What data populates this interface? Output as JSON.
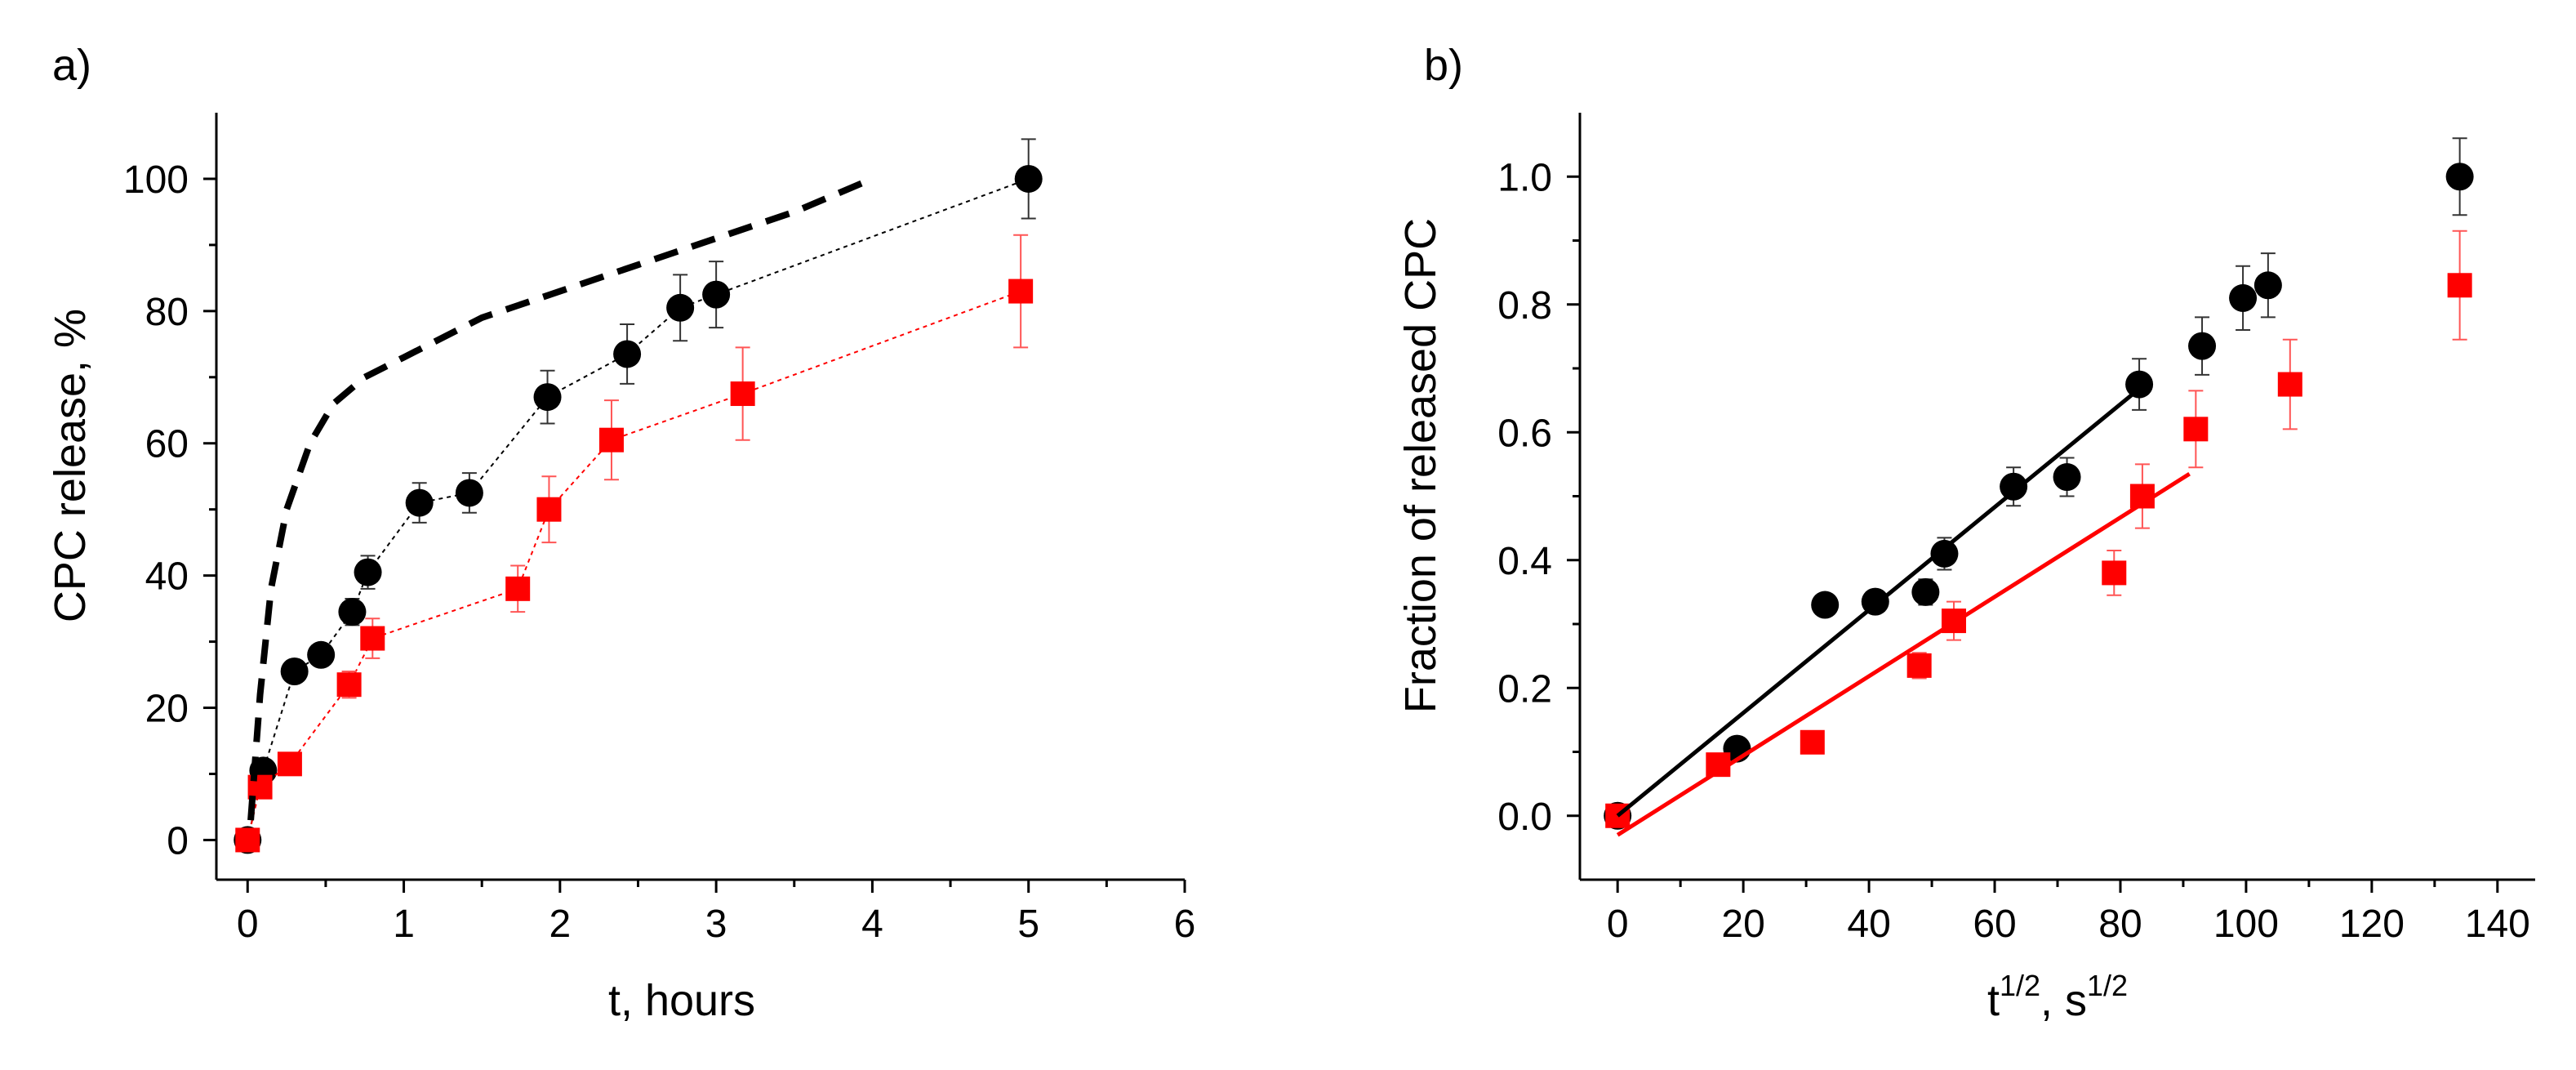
{
  "chart_data": [
    {
      "type": "scatter",
      "panel_label": "a)",
      "xlabel": "t, hours",
      "ylabel": "CPC release, %",
      "xlim": [
        -0.2,
        6
      ],
      "ylim": [
        -6,
        110
      ],
      "xticks": [
        0,
        1,
        2,
        3,
        4,
        5,
        6
      ],
      "xtick_labels": [
        "0",
        "1",
        "2",
        "3",
        "4",
        "5",
        "6"
      ],
      "yticks": [
        0,
        20,
        40,
        60,
        80,
        100
      ],
      "ytick_labels": [
        "0",
        "20",
        "40",
        "60",
        "80",
        "100"
      ],
      "grid": false,
      "series": [
        {
          "name": "black circles",
          "marker": "circle",
          "color": "#000000",
          "connector": "dotted",
          "x": [
            0,
            0.1,
            0.3,
            0.47,
            0.67,
            0.77,
            1.1,
            1.42,
            1.92,
            2.43,
            2.77,
            3.0,
            5.0
          ],
          "y": [
            0,
            10.5,
            25.5,
            28,
            34.5,
            40.5,
            51,
            52.5,
            67,
            73.5,
            80.5,
            82.5,
            100
          ],
          "err": [
            0,
            1,
            1,
            1,
            2,
            2.5,
            3,
            3,
            4,
            4.5,
            5,
            5,
            6
          ]
        },
        {
          "name": "red squares",
          "marker": "square",
          "color": "#ff0000",
          "connector": "dotted",
          "x": [
            0,
            0.08,
            0.27,
            0.65,
            0.8,
            1.73,
            1.93,
            2.33,
            3.17,
            4.95
          ],
          "y": [
            0,
            8,
            11.5,
            23.5,
            30.5,
            38,
            50,
            60.5,
            67.5,
            83
          ],
          "err": [
            0,
            0.5,
            1,
            2,
            3,
            3.5,
            5,
            6,
            7,
            8.5
          ]
        },
        {
          "name": "dashed curve",
          "marker": "none",
          "color": "#000000",
          "connector": "dashed",
          "x": [
            0.02,
            0.08,
            0.15,
            0.25,
            0.4,
            0.55,
            0.75,
            1.0,
            1.5,
            2.0,
            2.5,
            3.0,
            3.5,
            4.0
          ],
          "y": [
            3,
            22,
            38,
            50,
            60,
            66,
            70,
            73,
            79,
            83,
            87,
            91,
            95,
            100
          ]
        }
      ]
    },
    {
      "type": "scatter",
      "panel_label": "b)",
      "xlabel": "t",
      "xlabel_sup1": "1/2",
      "xlabel_mid": ", s",
      "xlabel_sup2": "1/2",
      "ylabel": "Fraction of released CPC",
      "xlim": [
        -6,
        146
      ],
      "ylim": [
        -0.1,
        1.1
      ],
      "xticks": [
        0,
        20,
        40,
        60,
        80,
        100,
        120,
        140
      ],
      "xtick_labels": [
        "0",
        "20",
        "40",
        "60",
        "80",
        "100",
        "120",
        "140"
      ],
      "yticks": [
        0,
        0.2,
        0.4,
        0.6,
        0.8,
        1.0
      ],
      "ytick_labels": [
        "0.0",
        "0.2",
        "0.4",
        "0.6",
        "0.8",
        "1.0"
      ],
      "grid": false,
      "series": [
        {
          "name": "black circles",
          "marker": "circle",
          "color": "#000000",
          "x": [
            0,
            19,
            33,
            41,
            49,
            52,
            63,
            71.5,
            83,
            93,
            99.5,
            103.5,
            134
          ],
          "y": [
            0,
            0.105,
            0.33,
            0.335,
            0.35,
            0.41,
            0.515,
            0.53,
            0.675,
            0.735,
            0.81,
            0.83,
            1.0
          ],
          "err": [
            0,
            0.01,
            0.01,
            0.01,
            0.02,
            0.025,
            0.03,
            0.03,
            0.04,
            0.045,
            0.05,
            0.05,
            0.06
          ]
        },
        {
          "name": "red squares",
          "marker": "square",
          "color": "#ff0000",
          "x": [
            0,
            16,
            31,
            48,
            53.5,
            79,
            83.5,
            92,
            107,
            134
          ],
          "y": [
            0,
            0.08,
            0.115,
            0.235,
            0.305,
            0.38,
            0.5,
            0.605,
            0.675,
            0.83
          ],
          "err": [
            0,
            0.005,
            0.01,
            0.02,
            0.03,
            0.035,
            0.05,
            0.06,
            0.07,
            0.085
          ]
        },
        {
          "name": "black fit line",
          "marker": "none",
          "color": "#000000",
          "connector": "solid",
          "x": [
            0,
            82
          ],
          "y": [
            0.0,
            0.66
          ]
        },
        {
          "name": "red fit line",
          "marker": "none",
          "color": "#ff0000",
          "connector": "solid",
          "x": [
            0,
            91
          ],
          "y": [
            -0.03,
            0.535
          ]
        }
      ]
    }
  ]
}
